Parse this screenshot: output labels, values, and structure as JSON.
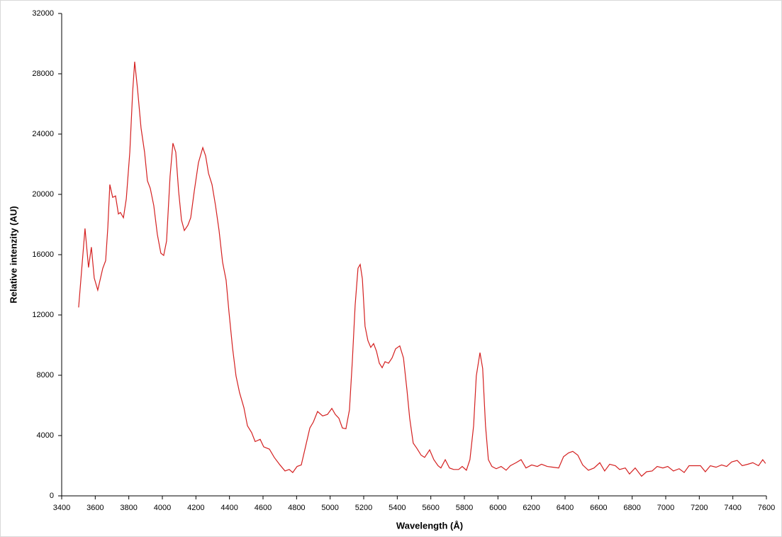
{
  "chart_data": {
    "type": "line",
    "x_label": "Wavelength (Å)",
    "y_label": "Relative intenzity (AU)",
    "xlim": [
      3400,
      7600
    ],
    "ylim": [
      0,
      32000
    ],
    "xticks": [
      3400,
      3600,
      3800,
      4000,
      4200,
      4400,
      4600,
      4800,
      5000,
      5200,
      5400,
      5600,
      5800,
      6000,
      6200,
      6400,
      6600,
      6800,
      7000,
      7200,
      7400,
      7600
    ],
    "yticks": [
      0,
      4000,
      8000,
      12000,
      16000,
      20000,
      24000,
      28000,
      32000
    ],
    "series": [
      {
        "color": "#d42020",
        "x": [
          3501,
          3539,
          3560,
          3577,
          3594,
          3615,
          3645,
          3662,
          3675,
          3687,
          3704,
          3721,
          3738,
          3750,
          3768,
          3785,
          3806,
          3823,
          3835,
          3852,
          3873,
          3894,
          3911,
          3928,
          3949,
          3970,
          3991,
          4008,
          4025,
          4046,
          4063,
          4080,
          4097,
          4114,
          4131,
          4152,
          4169,
          4190,
          4215,
          4241,
          4258,
          4275,
          4296,
          4317,
          4338,
          4359,
          4380,
          4397,
          4418,
          4439,
          4460,
          4486,
          4507,
          4532,
          4553,
          4583,
          4604,
          4638,
          4667,
          4701,
          4731,
          4756,
          4777,
          4803,
          4828,
          4853,
          4879,
          4900,
          4925,
          4955,
          4984,
          5010,
          5031,
          5052,
          5073,
          5094,
          5115,
          5132,
          5149,
          5166,
          5179,
          5192,
          5208,
          5225,
          5242,
          5259,
          5276,
          5293,
          5310,
          5327,
          5348,
          5369,
          5390,
          5415,
          5437,
          5458,
          5474,
          5495,
          5517,
          5542,
          5563,
          5593,
          5618,
          5643,
          5660,
          5686,
          5711,
          5736,
          5766,
          5787,
          5812,
          5833,
          5855,
          5871,
          5893,
          5909,
          5926,
          5943,
          5964,
          5990,
          6019,
          6049,
          6074,
          6108,
          6138,
          6167,
          6201,
          6235,
          6260,
          6294,
          6328,
          6362,
          6391,
          6421,
          6446,
          6476,
          6505,
          6539,
          6573,
          6607,
          6636,
          6666,
          6700,
          6725,
          6759,
          6784,
          6818,
          6856,
          6886,
          6919,
          6949,
          6983,
          7012,
          7046,
          7080,
          7110,
          7139,
          7173,
          7207,
          7236,
          7266,
          7300,
          7333,
          7363,
          7393,
          7426,
          7456,
          7490,
          7519,
          7553,
          7578,
          7595
        ],
        "values": [
          12500,
          17740,
          15150,
          16500,
          14450,
          13650,
          15100,
          15600,
          17800,
          20650,
          19800,
          19900,
          18700,
          18800,
          18450,
          19700,
          22800,
          26800,
          28800,
          27000,
          24400,
          22800,
          20900,
          20400,
          19250,
          17350,
          16100,
          15950,
          16900,
          21200,
          23400,
          22800,
          20200,
          18300,
          17600,
          17950,
          18450,
          20200,
          22100,
          23100,
          22550,
          21400,
          20650,
          19250,
          17600,
          15500,
          14300,
          12200,
          9850,
          7950,
          6850,
          5850,
          4650,
          4200,
          3600,
          3750,
          3250,
          3100,
          2550,
          2050,
          1650,
          1750,
          1550,
          1950,
          2050,
          3250,
          4500,
          4900,
          5600,
          5300,
          5400,
          5800,
          5400,
          5150,
          4500,
          4450,
          5700,
          8900,
          12650,
          15100,
          15350,
          14400,
          11250,
          10300,
          9850,
          10100,
          9600,
          8800,
          8500,
          8900,
          8800,
          9150,
          9750,
          9950,
          9150,
          7000,
          5150,
          3500,
          3150,
          2700,
          2550,
          3050,
          2400,
          2000,
          1850,
          2400,
          1850,
          1750,
          1750,
          1950,
          1700,
          2400,
          4650,
          7950,
          9500,
          8450,
          4650,
          2400,
          1950,
          1800,
          1950,
          1700,
          2000,
          2200,
          2400,
          1850,
          2050,
          1950,
          2100,
          1950,
          1900,
          1850,
          2600,
          2850,
          2950,
          2700,
          2050,
          1700,
          1850,
          2200,
          1650,
          2100,
          2000,
          1750,
          1850,
          1450,
          1850,
          1300,
          1600,
          1650,
          1950,
          1850,
          1950,
          1650,
          1800,
          1550,
          2000,
          2000,
          2000,
          1600,
          2000,
          1900,
          2050,
          1950,
          2250,
          2350,
          2000,
          2100,
          2200,
          2000,
          2400,
          2150
        ]
      }
    ]
  }
}
